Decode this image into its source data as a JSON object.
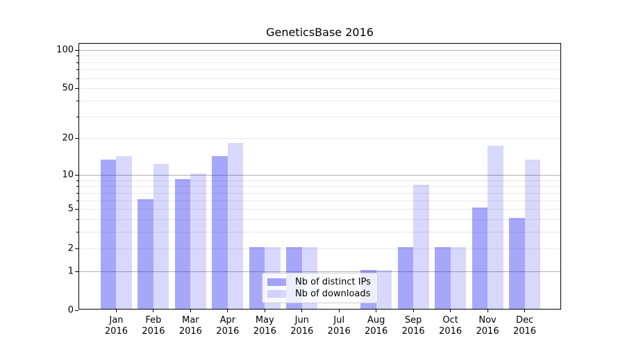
{
  "title": "GeneticsBase 2016",
  "legend": {
    "items": [
      {
        "label": "Nb of distinct IPs"
      },
      {
        "label": "Nb of downloads"
      }
    ]
  },
  "chart_data": {
    "type": "bar",
    "title": "GeneticsBase 2016",
    "categories": [
      "Jan 2016",
      "Feb 2016",
      "Mar 2016",
      "Apr 2016",
      "May 2016",
      "Jun 2016",
      "Jul 2016",
      "Aug 2016",
      "Sep 2016",
      "Oct 2016",
      "Nov 2016",
      "Dec 2016"
    ],
    "series": [
      {
        "name": "Nb of distinct IPs",
        "color": "rgba(10,10,240,0.36)",
        "values": [
          13,
          6,
          9,
          14,
          2,
          2,
          0,
          1,
          2,
          2,
          5,
          4
        ]
      },
      {
        "name": "Nb of downloads",
        "color": "rgba(10,10,240,0.16)",
        "values": [
          14,
          12,
          10,
          18,
          2,
          2,
          0,
          1,
          8,
          2,
          17,
          13
        ]
      }
    ],
    "xlabel": "",
    "ylabel": "",
    "yscale": "log1p",
    "ylim": [
      0,
      111.5
    ],
    "yticks": [
      0,
      1,
      2,
      5,
      10,
      20,
      50,
      100
    ],
    "grid": true,
    "grid_major": [
      1,
      10,
      100
    ],
    "grid_minor": [
      2,
      3,
      4,
      5,
      6,
      7,
      8,
      9,
      20,
      30,
      40,
      50,
      60,
      70,
      80,
      90
    ],
    "legend_position": "lower center",
    "colors": {
      "major_grid": "#b0b0b0",
      "minor_grid": "#e9e9e9",
      "axis": "#000000"
    }
  }
}
